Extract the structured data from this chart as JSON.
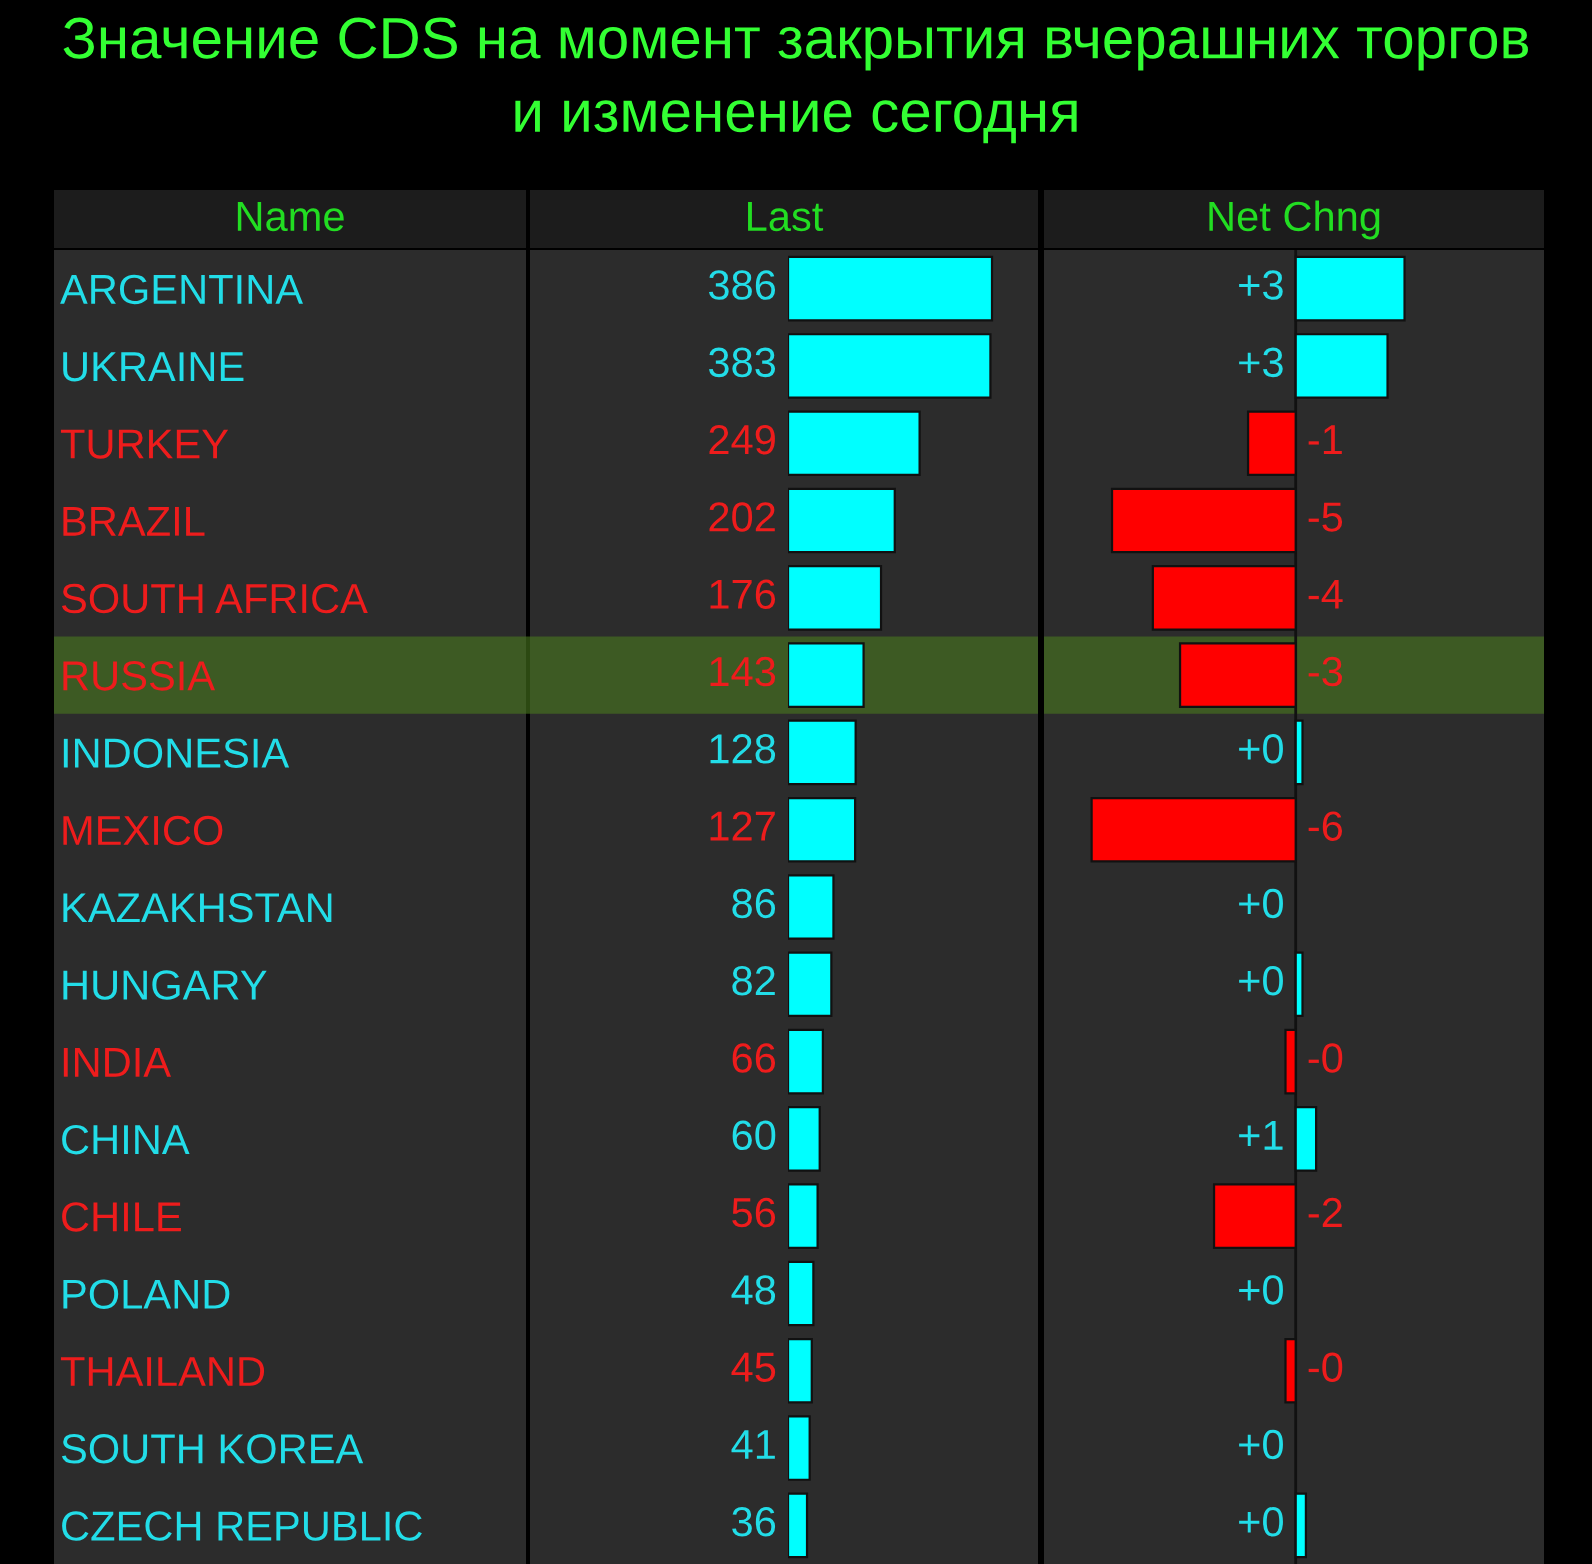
{
  "chart_data": [
    {
      "type": "bar",
      "orientation": "horizontal",
      "title": "Значение CDS на момент закрытия вчерашних торгов\nи изменение сегодня",
      "ylabel": "Name",
      "xlabel": "Last",
      "categories": [
        "ARGENTINA",
        "UKRAINE",
        "TURKEY",
        "BRAZIL",
        "SOUTH AFRICA",
        "RUSSIA",
        "INDONESIA",
        "MEXICO",
        "KAZAKHSTAN",
        "HUNGARY",
        "INDIA",
        "CHINA",
        "CHILE",
        "POLAND",
        "THAILAND",
        "SOUTH KOREA",
        "CZECH REPUBLIC"
      ],
      "values": [
        386,
        383,
        249,
        202,
        176,
        143,
        128,
        127,
        86,
        82,
        66,
        60,
        56,
        48,
        45,
        41,
        36
      ],
      "color": "#00ffff",
      "xlim": [
        0,
        473
      ],
      "data_labels": true,
      "tick_labels": "y",
      "grid": false,
      "legend": false,
      "bands": [
        {
          "axis": "y",
          "from": "RUSSIA",
          "to": "RUSSIA",
          "color": "#4a7a1e"
        }
      ]
    },
    {
      "type": "bar",
      "orientation": "horizontal",
      "xlabel": "Net Chng",
      "categories": [
        "ARGENTINA",
        "UKRAINE",
        "TURKEY",
        "BRAZIL",
        "SOUTH AFRICA",
        "RUSSIA",
        "INDONESIA",
        "MEXICO",
        "KAZAKHSTAN",
        "HUNGARY",
        "INDIA",
        "CHINA",
        "CHILE",
        "POLAND",
        "THAILAND",
        "SOUTH KOREA",
        "CZECH REPUBLIC"
      ],
      "values": [
        3.2,
        2.7,
        -1.4,
        -5.4,
        -4.2,
        -3.4,
        0.2,
        -6.0,
        0,
        0.2,
        -0.3,
        0.6,
        -2.4,
        0,
        -0.3,
        0,
        0.3
      ],
      "value_labels": [
        "+3",
        "+3",
        "-1",
        "-5",
        "-4",
        "-3",
        "+0",
        "-6",
        "+0",
        "+0",
        "-0",
        "+1",
        "-2",
        "+0",
        "-0",
        "+0",
        "+0"
      ],
      "colors": [
        "#00ffff",
        "#00ffff",
        "#ff0000",
        "#ff0000",
        "#ff0000",
        "#ff0000",
        "#00ffff",
        "#ff0000",
        "#00ffff",
        "#00ffff",
        "#ff0000",
        "#00ffff",
        "#ff0000",
        "#00ffff",
        "#ff0000",
        "#00ffff",
        "#00ffff"
      ],
      "xlim": [
        -7.4,
        7.3
      ],
      "tick_labels": false,
      "grid": false,
      "legend": false,
      "bands": [
        {
          "axis": "y",
          "from": "RUSSIA",
          "to": "RUSSIA",
          "color": "#4a7a1e"
        }
      ]
    }
  ]
}
